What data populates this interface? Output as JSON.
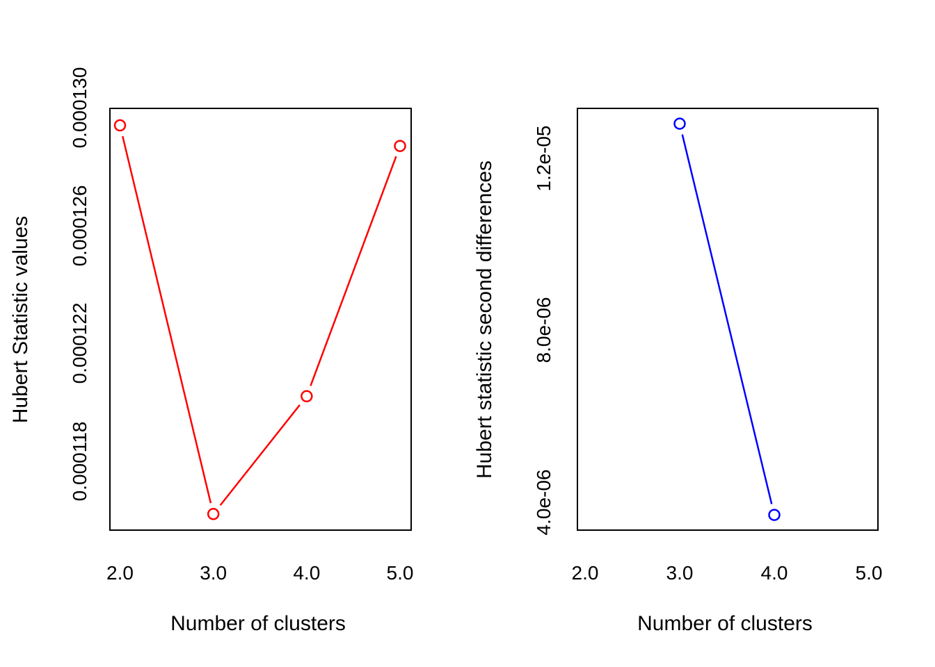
{
  "page": {
    "background": "#FFFFFF",
    "text_color": "#000000"
  },
  "chart_data": [
    {
      "type": "line",
      "title": "",
      "xlabel": "Number of clusters",
      "ylabel": "Hubert Statistic values",
      "series": [
        {
          "name": "Hubert Statistic values",
          "color": "#FF0000",
          "marker": "open-circle",
          "line_style": "solid",
          "x": [
            2,
            3,
            4,
            5
          ],
          "y": [
            0.0001294,
            0.0001162,
            0.0001202,
            0.0001287
          ]
        }
      ],
      "x_tick_labels": [
        "2.0",
        "3.0",
        "4.0",
        "5.0"
      ],
      "x_tick_values": [
        2,
        3,
        4,
        5
      ],
      "y_tick_labels": [
        "0.000118",
        "0.000122",
        "0.000126",
        "0.000130"
      ],
      "y_tick_values": [
        0.000118,
        0.000122,
        0.000126,
        0.00013
      ],
      "xlim": [
        1.88,
        5.12
      ],
      "ylim": [
        0.00011566,
        0.00012994
      ],
      "grid": false,
      "legend": null
    },
    {
      "type": "line",
      "title": "",
      "xlabel": "Number of clusters",
      "ylabel": "Hubert statistic second differences",
      "series": [
        {
          "name": "Hubert statistic second differences",
          "color": "#0000FF",
          "marker": "open-circle",
          "line_style": "solid",
          "x": [
            3,
            4
          ],
          "y": [
            1.28e-05,
            3.7e-06
          ]
        }
      ],
      "x_tick_labels": [
        "2.0",
        "3.0",
        "4.0",
        "5.0"
      ],
      "x_tick_values": [
        2,
        3,
        4,
        5
      ],
      "y_tick_labels": [
        "4.0e-06",
        "8.0e-06",
        "1.2e-05"
      ],
      "y_tick_values": [
        4e-06,
        8e-06,
        1.2e-05
      ],
      "xlim": [
        1.88,
        5.12
      ],
      "ylim": [
        3.35e-06,
        1.316e-05
      ],
      "grid": false,
      "legend": null
    }
  ]
}
